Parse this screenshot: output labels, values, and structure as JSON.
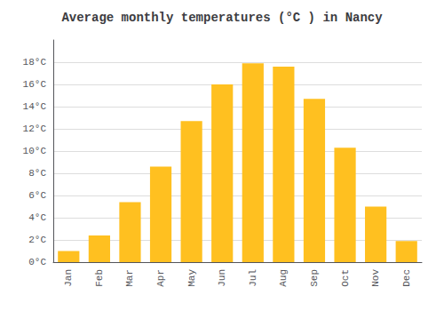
{
  "chart_data": {
    "type": "bar",
    "title": "Average monthly temperatures (°C ) in Nancy",
    "categories": [
      "Jan",
      "Feb",
      "Mar",
      "Apr",
      "May",
      "Jun",
      "Jul",
      "Aug",
      "Sep",
      "Oct",
      "Nov",
      "Dec"
    ],
    "values": [
      1.0,
      2.4,
      5.4,
      8.6,
      12.7,
      16.0,
      17.9,
      17.6,
      14.7,
      10.3,
      5.0,
      1.9
    ],
    "color": "#FFC020",
    "ylim": [
      0,
      20
    ],
    "yticks": [
      {
        "value": 0,
        "label": "0°C"
      },
      {
        "value": 2,
        "label": "2°C"
      },
      {
        "value": 4,
        "label": "4°C"
      },
      {
        "value": 6,
        "label": "6°C"
      },
      {
        "value": 8,
        "label": "8°C"
      },
      {
        "value": 10,
        "label": "10°C"
      },
      {
        "value": 12,
        "label": "12°C"
      },
      {
        "value": 14,
        "label": "14°C"
      },
      {
        "value": 16,
        "label": "16°C"
      },
      {
        "value": 18,
        "label": "18°C"
      }
    ],
    "grid": true
  }
}
